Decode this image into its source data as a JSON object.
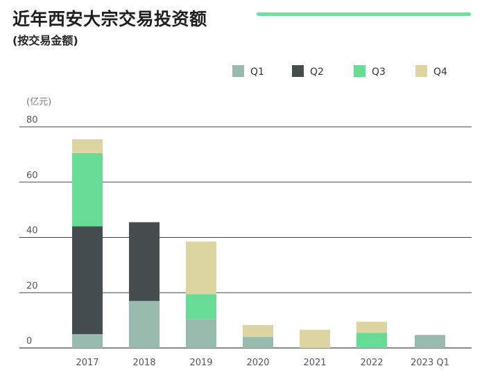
{
  "title": "近年西安大宗交易投资额",
  "subtitle": "(按交易金额)",
  "colors": {
    "accent_rule": "#6fdca0",
    "grid": "#444444"
  },
  "chart_data": {
    "type": "bar",
    "stacked": true,
    "title": "近年西安大宗交易投资额",
    "subtitle": "(按交易金额)",
    "ylabel": "(亿元)",
    "xlabel": "",
    "ylim": [
      0,
      80
    ],
    "yticks": [
      0,
      20,
      40,
      60,
      80
    ],
    "grid": true,
    "legend_position": "top-right",
    "categories": [
      "2017",
      "2018",
      "2019",
      "2020",
      "2021",
      "2022",
      "2023 Q1"
    ],
    "series": [
      {
        "name": "Q1",
        "color": "#97bbad",
        "values": [
          5,
          17,
          10.5,
          4,
          0,
          0,
          4.7
        ]
      },
      {
        "name": "Q2",
        "color": "#464d50",
        "values": [
          39,
          28.5,
          0,
          0,
          0,
          0,
          0
        ]
      },
      {
        "name": "Q3",
        "color": "#68dc97",
        "values": [
          26.5,
          0,
          9,
          0,
          0,
          5.5,
          0
        ]
      },
      {
        "name": "Q4",
        "color": "#ddd5a1",
        "values": [
          5,
          0,
          19,
          4.3,
          6.6,
          4,
          0
        ]
      }
    ]
  }
}
